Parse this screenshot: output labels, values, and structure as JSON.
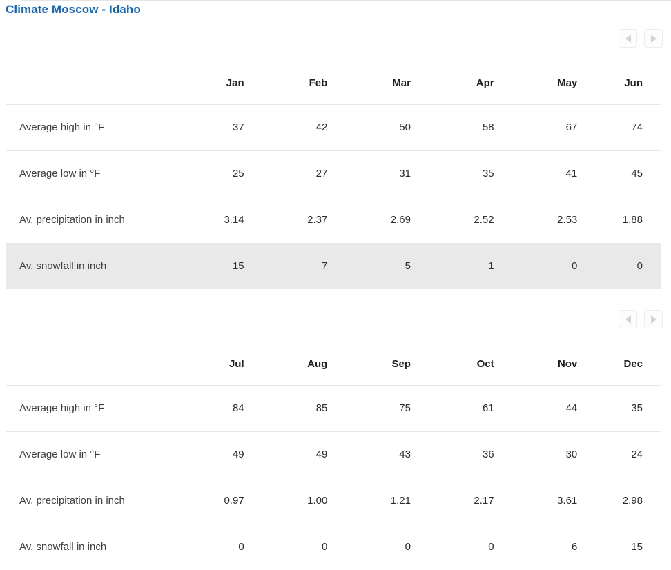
{
  "page": {
    "title": "Climate Moscow - Idaho"
  },
  "colors": {
    "title_blue": "#1464c4",
    "high_value_red": "#b2443f",
    "low_value_blue": "#2d7cc3",
    "normal_value": "#2c2c2c",
    "row_border": "#e8e8e8",
    "highlight_row_bg": "#e9e9e9",
    "nav_arrow": "#d3d3d3"
  },
  "nav": {
    "prev_icon": "chevron-left-icon",
    "next_icon": "chevron-right-icon"
  },
  "chart_data": {
    "type": "table",
    "title": "Climate Moscow - Idaho",
    "categories": [
      "Jan",
      "Feb",
      "Mar",
      "Apr",
      "May",
      "Jun",
      "Jul",
      "Aug",
      "Sep",
      "Oct",
      "Nov",
      "Dec"
    ],
    "series": [
      {
        "name": "Average high in °F",
        "values": [
          37,
          42,
          50,
          58,
          67,
          74,
          84,
          85,
          75,
          61,
          44,
          35
        ]
      },
      {
        "name": "Average low in °F",
        "values": [
          25,
          27,
          31,
          35,
          41,
          45,
          49,
          49,
          43,
          36,
          30,
          24
        ]
      },
      {
        "name": "Av. precipitation in inch",
        "values": [
          3.14,
          2.37,
          2.69,
          2.52,
          2.53,
          1.88,
          0.97,
          1.0,
          1.21,
          2.17,
          3.61,
          2.98
        ]
      },
      {
        "name": "Av. snowfall in inch",
        "values": [
          15,
          7,
          5,
          1,
          0,
          0,
          0,
          0,
          0,
          0,
          6,
          15
        ]
      }
    ]
  },
  "tables": [
    {
      "months": [
        "Jan",
        "Feb",
        "Mar",
        "Apr",
        "May",
        "Jun"
      ],
      "rows": [
        {
          "label": "Average high in °F",
          "values": [
            "37",
            "42",
            "50",
            "58",
            "67",
            "74"
          ]
        },
        {
          "label": "Average low in °F",
          "values": [
            "25",
            "27",
            "31",
            "35",
            "41",
            "45"
          ]
        },
        {
          "label": "Av. precipitation in inch",
          "values": [
            "3.14",
            "2.37",
            "2.69",
            "2.52",
            "2.53",
            "1.88"
          ]
        },
        {
          "label": "Av. snowfall in inch",
          "values": [
            "15",
            "7",
            "5",
            "1",
            "0",
            "0"
          ]
        }
      ]
    },
    {
      "months": [
        "Jul",
        "Aug",
        "Sep",
        "Oct",
        "Nov",
        "Dec"
      ],
      "rows": [
        {
          "label": "Average high in °F",
          "values": [
            "84",
            "85",
            "75",
            "61",
            "44",
            "35"
          ]
        },
        {
          "label": "Average low in °F",
          "values": [
            "49",
            "49",
            "43",
            "36",
            "30",
            "24"
          ]
        },
        {
          "label": "Av. precipitation in inch",
          "values": [
            "0.97",
            "1.00",
            "1.21",
            "2.17",
            "3.61",
            "2.98"
          ]
        },
        {
          "label": "Av. snowfall in inch",
          "values": [
            "0",
            "0",
            "0",
            "0",
            "6",
            "15"
          ]
        }
      ]
    }
  ]
}
